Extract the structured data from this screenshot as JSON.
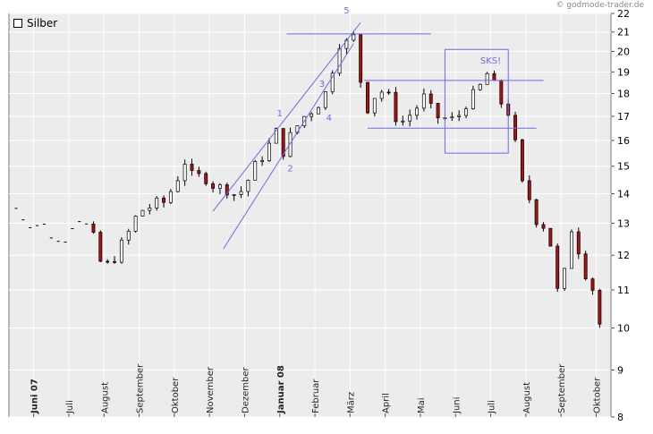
{
  "copyright": "© godmode-trader.de",
  "chart_data": {
    "type": "candlestick",
    "instrument": "Silber",
    "y_axis": {
      "min": 8,
      "max": 22,
      "scale": "log",
      "ticks": [
        8,
        9,
        10,
        11,
        12,
        13,
        14,
        15,
        16,
        17,
        18,
        19,
        20,
        21,
        22
      ],
      "position": "right"
    },
    "x_axis": {
      "range_months": [
        "Juni 07",
        "Oktober 08"
      ],
      "labels": [
        {
          "text": "Juni 07",
          "bold": true
        },
        {
          "text": "Juli",
          "bold": false
        },
        {
          "text": "August",
          "bold": false
        },
        {
          "text": "September",
          "bold": false
        },
        {
          "text": "Oktober",
          "bold": false
        },
        {
          "text": "November",
          "bold": false
        },
        {
          "text": "Dezember",
          "bold": false
        },
        {
          "text": "Januar 08",
          "bold": true
        },
        {
          "text": "Februar",
          "bold": false
        },
        {
          "text": "März",
          "bold": false
        },
        {
          "text": "April",
          "bold": false
        },
        {
          "text": "Mai",
          "bold": false
        },
        {
          "text": "Juni",
          "bold": false
        },
        {
          "text": "Juli",
          "bold": false
        },
        {
          "text": "August",
          "bold": false
        },
        {
          "text": "September",
          "bold": false
        },
        {
          "text": "Oktober",
          "bold": false
        }
      ]
    },
    "grid": true,
    "price_path": [
      {
        "m": 0.0,
        "v": 13.5
      },
      {
        "m": 0.3,
        "v": 13.1
      },
      {
        "m": 0.5,
        "v": 13.0
      },
      {
        "m": 0.8,
        "v": 12.9
      },
      {
        "m": 1.2,
        "v": 12.4
      },
      {
        "m": 1.4,
        "v": 12.6
      },
      {
        "m": 1.6,
        "v": 13.0
      },
      {
        "m": 1.9,
        "v": 13.3
      },
      {
        "m": 2.0,
        "v": 12.9
      },
      {
        "m": 2.2,
        "v": 12.5
      },
      {
        "m": 2.4,
        "v": 11.8
      },
      {
        "m": 2.6,
        "v": 11.7
      },
      {
        "m": 2.9,
        "v": 12.1
      },
      {
        "m": 3.2,
        "v": 12.7
      },
      {
        "m": 3.5,
        "v": 13.4
      },
      {
        "m": 3.9,
        "v": 13.6
      },
      {
        "m": 4.2,
        "v": 13.7
      },
      {
        "m": 4.5,
        "v": 14.3
      },
      {
        "m": 4.8,
        "v": 15.2
      },
      {
        "m": 5.0,
        "v": 14.6
      },
      {
        "m": 5.4,
        "v": 14.6
      },
      {
        "m": 5.7,
        "v": 14.2
      },
      {
        "m": 6.0,
        "v": 14.2
      },
      {
        "m": 6.3,
        "v": 13.9
      },
      {
        "m": 6.6,
        "v": 14.5
      },
      {
        "m": 6.9,
        "v": 15.2
      },
      {
        "m": 7.2,
        "v": 15.8
      },
      {
        "m": 7.4,
        "v": 16.3
      },
      {
        "m": 7.6,
        "v": 15.6
      },
      {
        "m": 7.9,
        "v": 16.4
      },
      {
        "m": 8.2,
        "v": 17.0
      },
      {
        "m": 8.5,
        "v": 17.4
      },
      {
        "m": 8.8,
        "v": 18.0
      },
      {
        "m": 9.0,
        "v": 19.2
      },
      {
        "m": 9.2,
        "v": 20.5
      },
      {
        "m": 9.4,
        "v": 20.4
      },
      {
        "m": 9.6,
        "v": 20.7
      },
      {
        "m": 9.8,
        "v": 18.6
      },
      {
        "m": 10.0,
        "v": 17.4
      },
      {
        "m": 10.2,
        "v": 17.9
      },
      {
        "m": 10.5,
        "v": 18.2
      },
      {
        "m": 10.8,
        "v": 17.0
      },
      {
        "m": 11.0,
        "v": 16.8
      },
      {
        "m": 11.3,
        "v": 17.2
      },
      {
        "m": 11.6,
        "v": 17.8
      },
      {
        "m": 11.9,
        "v": 17.0
      },
      {
        "m": 12.2,
        "v": 16.9
      },
      {
        "m": 12.5,
        "v": 16.8
      },
      {
        "m": 12.8,
        "v": 17.6
      },
      {
        "m": 13.1,
        "v": 18.0
      },
      {
        "m": 13.4,
        "v": 18.9
      },
      {
        "m": 13.6,
        "v": 18.3
      },
      {
        "m": 13.8,
        "v": 17.6
      },
      {
        "m": 14.0,
        "v": 17.2
      },
      {
        "m": 14.2,
        "v": 15.8
      },
      {
        "m": 14.4,
        "v": 14.3
      },
      {
        "m": 14.7,
        "v": 13.6
      },
      {
        "m": 14.9,
        "v": 12.7
      },
      {
        "m": 15.1,
        "v": 13.2
      },
      {
        "m": 15.3,
        "v": 11.5
      },
      {
        "m": 15.5,
        "v": 10.4
      },
      {
        "m": 15.7,
        "v": 12.5
      },
      {
        "m": 15.9,
        "v": 13.2
      },
      {
        "m": 16.1,
        "v": 11.2
      },
      {
        "m": 16.3,
        "v": 11.8
      },
      {
        "m": 16.5,
        "v": 10.3
      },
      {
        "m": 16.7,
        "v": 9.9
      }
    ],
    "annotations": [
      {
        "type": "line",
        "role": "upper-channel",
        "from": {
          "m": 5.6,
          "v": 13.4
        },
        "to": {
          "m": 9.8,
          "v": 21.5
        }
      },
      {
        "type": "line",
        "role": "lower-channel",
        "from": {
          "m": 5.9,
          "v": 12.2
        },
        "to": {
          "m": 9.6,
          "v": 20.4
        }
      },
      {
        "type": "line",
        "role": "top-horizontal",
        "from": {
          "m": 7.7,
          "v": 20.9
        },
        "to": {
          "m": 11.8,
          "v": 20.9
        }
      },
      {
        "type": "line",
        "role": "neckline-upper",
        "from": {
          "m": 9.9,
          "v": 18.6
        },
        "to": {
          "m": 15.0,
          "v": 18.6
        }
      },
      {
        "type": "line",
        "role": "neckline-lower",
        "from": {
          "m": 10.0,
          "v": 16.5
        },
        "to": {
          "m": 14.8,
          "v": 16.5
        }
      },
      {
        "type": "rect",
        "role": "sks-box",
        "from": {
          "m": 12.2,
          "v": 20.1
        },
        "to": {
          "m": 14.0,
          "v": 15.5
        }
      }
    ],
    "labels": [
      {
        "text": "1",
        "m": 7.5,
        "v": 17.0
      },
      {
        "text": "2",
        "m": 7.8,
        "v": 14.8
      },
      {
        "text": "3",
        "m": 8.7,
        "v": 18.3
      },
      {
        "text": "4",
        "m": 8.9,
        "v": 16.8
      },
      {
        "text": "5",
        "m": 9.4,
        "v": 22.0
      },
      {
        "text": "SKS!",
        "m": 13.5,
        "v": 19.4
      }
    ],
    "colors": {
      "up": "#ffffff",
      "down": "#aa1111",
      "wick": "#000000",
      "annotation": "#6a6af0",
      "grid": "#d8d8d8"
    }
  }
}
